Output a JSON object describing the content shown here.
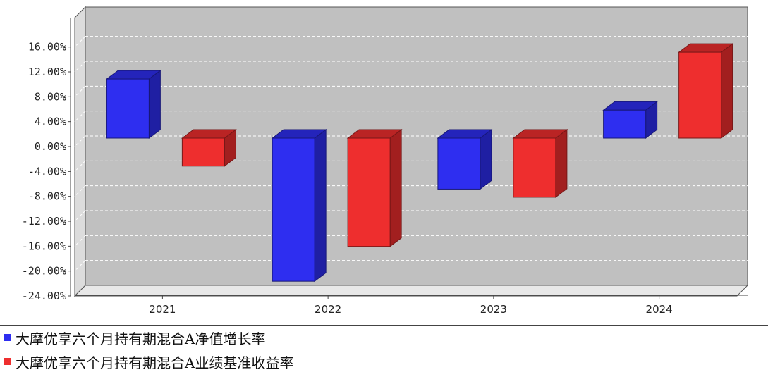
{
  "chart_data": {
    "type": "bar",
    "categories": [
      "2021",
      "2022",
      "2023",
      "2024"
    ],
    "series": [
      {
        "name": "大摩优享六个月持有期混合A净值增长率",
        "values": [
          9.5,
          -23.0,
          -8.2,
          4.5
        ],
        "color": "#2e2ef0"
      },
      {
        "name": "大摩优享六个月持有期混合A业绩基准收益率",
        "values": [
          -4.5,
          -17.4,
          -9.5,
          13.8
        ],
        "color": "#ee2e2e"
      }
    ],
    "yticks": [
      "16.00%",
      "12.00%",
      "8.00%",
      "4.00%",
      "0.00%",
      "-4.00%",
      "-8.00%",
      "-12.00%",
      "-16.00%",
      "-20.00%",
      "-24.00%"
    ],
    "ylim": [
      -24,
      20
    ],
    "grid": true,
    "legend": "bottom-left",
    "background": "#c0c0c0"
  }
}
